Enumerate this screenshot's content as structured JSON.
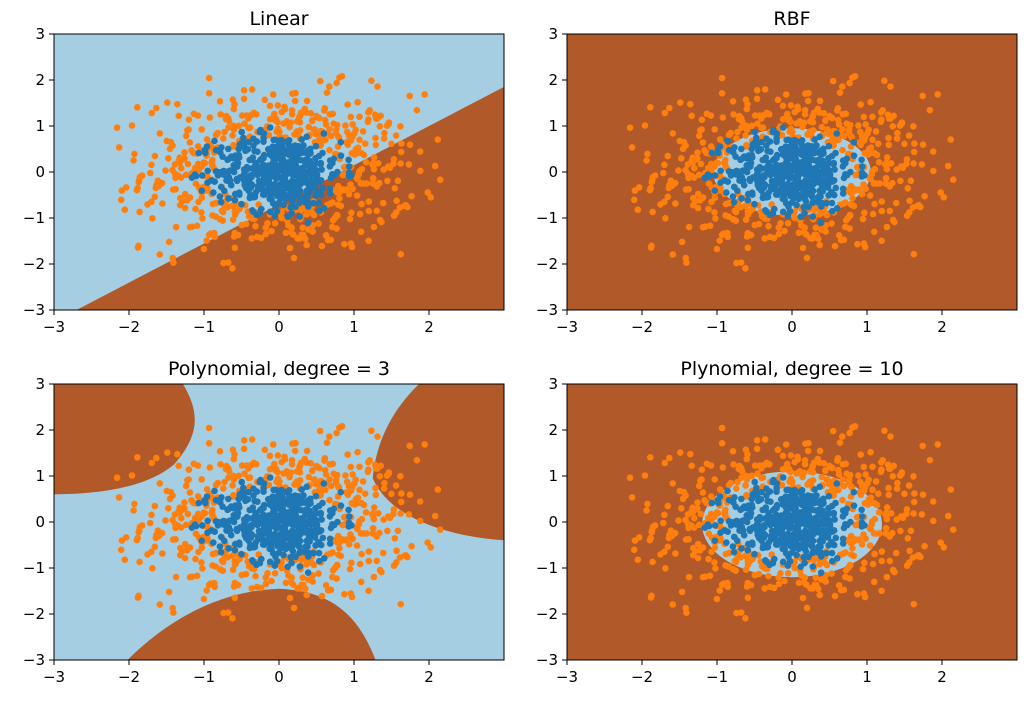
{
  "colors": {
    "region_a": "#a6cee3",
    "region_b": "#b15928",
    "class_inner": "#1f77b4",
    "class_outer": "#ff7f0e",
    "axis": "#000000"
  },
  "chart_data": [
    {
      "type": "scatter",
      "title": "Linear",
      "xlabel": "",
      "ylabel": "",
      "xlim": [
        -3,
        3
      ],
      "ylim": [
        -3,
        3
      ],
      "xticks": [
        "−3",
        "−2",
        "−1",
        "0",
        "1",
        "2"
      ],
      "yticks": [
        "−3",
        "−2",
        "−1",
        "0",
        "1",
        "2",
        "3"
      ],
      "grid": false,
      "decision_regions": {
        "kind": "linear",
        "boundary_line": [
          [
            -2.7,
            -3.0
          ],
          [
            3.0,
            1.85
          ]
        ],
        "region_above": "region_a",
        "region_below": "region_b"
      },
      "series": [
        {
          "class": "outer",
          "distribution": "ring",
          "center": [
            0,
            0
          ],
          "radius_x": [
            0.6,
            2.2
          ],
          "radius_y": [
            0.45,
            2.1
          ],
          "count": 520
        },
        {
          "class": "inner",
          "distribution": "core",
          "center": [
            0,
            0
          ],
          "radius_x": [
            0,
            1.2
          ],
          "radius_y": [
            0,
            1.2
          ],
          "count": 480
        }
      ]
    },
    {
      "type": "scatter",
      "title": "RBF",
      "xlabel": "",
      "ylabel": "",
      "xlim": [
        -3,
        3
      ],
      "ylim": [
        -3,
        3
      ],
      "xticks": [
        "−3",
        "−2",
        "−1",
        "0",
        "1",
        "2"
      ],
      "yticks": [
        "−3",
        "−2",
        "−1",
        "0",
        "1",
        "2",
        "3"
      ],
      "grid": false,
      "decision_regions": {
        "kind": "ellipse",
        "ellipse": {
          "cx": 0,
          "cy": 0,
          "rx": 1.05,
          "ry": 0.95
        },
        "inside": "region_a",
        "outside": "region_b"
      },
      "series": [
        {
          "class": "outer",
          "distribution": "ring",
          "center": [
            0,
            0
          ],
          "radius_x": [
            0.6,
            2.2
          ],
          "radius_y": [
            0.45,
            2.1
          ],
          "count": 520
        },
        {
          "class": "inner",
          "distribution": "core",
          "center": [
            0,
            0
          ],
          "radius_x": [
            0,
            1.2
          ],
          "radius_y": [
            0,
            1.2
          ],
          "count": 480
        }
      ]
    },
    {
      "type": "scatter",
      "title": "Polynomial, degree = 3",
      "xlabel": "",
      "ylabel": "",
      "xlim": [
        -3,
        3
      ],
      "ylim": [
        -3,
        3
      ],
      "xticks": [
        "−3",
        "−2",
        "−1",
        "0",
        "1",
        "2"
      ],
      "yticks": [
        "−3",
        "−2",
        "−1",
        "0",
        "1",
        "2",
        "3"
      ],
      "grid": false,
      "decision_regions": {
        "kind": "polynomial",
        "background": "region_a",
        "region_b_parts": [
          "top-left",
          "top-right",
          "bottom-center"
        ]
      },
      "series": [
        {
          "class": "outer",
          "distribution": "ring",
          "center": [
            0,
            0
          ],
          "radius_x": [
            0.6,
            2.2
          ],
          "radius_y": [
            0.45,
            2.1
          ],
          "count": 520
        },
        {
          "class": "inner",
          "distribution": "core",
          "center": [
            0,
            0
          ],
          "radius_x": [
            0,
            1.2
          ],
          "radius_y": [
            0,
            1.2
          ],
          "count": 480
        }
      ]
    },
    {
      "type": "scatter",
      "title": "Plynomial, degree = 10",
      "xlabel": "",
      "ylabel": "",
      "xlim": [
        -3,
        3
      ],
      "ylim": [
        -3,
        3
      ],
      "xticks": [
        "−3",
        "−2",
        "−1",
        "0",
        "1",
        "2"
      ],
      "yticks": [
        "−3",
        "−2",
        "−1",
        "0",
        "1",
        "2",
        "3"
      ],
      "grid": false,
      "decision_regions": {
        "kind": "ellipse",
        "ellipse": {
          "cx": 0,
          "cy": -0.05,
          "rx": 1.2,
          "ry": 1.15
        },
        "inside": "region_a",
        "outside": "region_b"
      },
      "series": [
        {
          "class": "outer",
          "distribution": "ring",
          "center": [
            0,
            0
          ],
          "radius_x": [
            0.6,
            2.2
          ],
          "radius_y": [
            0.45,
            2.1
          ],
          "count": 520
        },
        {
          "class": "inner",
          "distribution": "core",
          "center": [
            0,
            0
          ],
          "radius_x": [
            0,
            1.2
          ],
          "radius_y": [
            0,
            1.2
          ],
          "count": 480
        }
      ]
    }
  ]
}
